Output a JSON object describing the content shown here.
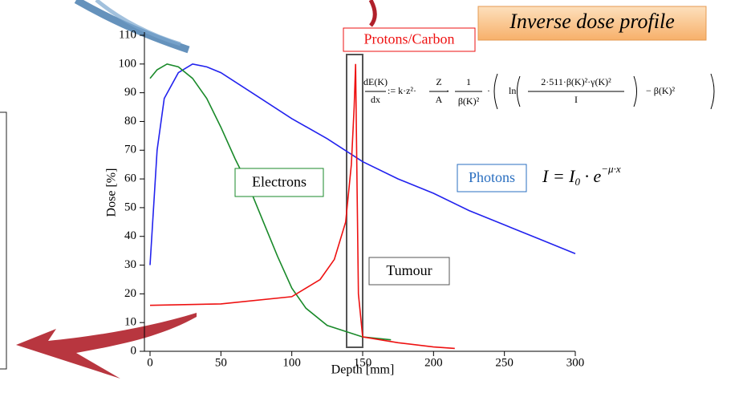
{
  "chart_data": {
    "type": "line",
    "title": "Inverse dose profile",
    "xlabel": "Depth [mm]",
    "ylabel": "Dose [%]",
    "xlim": [
      0,
      300
    ],
    "xticks": [
      0,
      50,
      100,
      150,
      200,
      250,
      300
    ],
    "ylim": [
      0,
      110
    ],
    "yticks": [
      0,
      10,
      20,
      30,
      40,
      50,
      60,
      70,
      80,
      90,
      100,
      110
    ],
    "series": [
      {
        "name": "Photons",
        "color": "#2222ee",
        "x": [
          0,
          5,
          10,
          20,
          30,
          40,
          50,
          75,
          100,
          125,
          150,
          175,
          200,
          225,
          250,
          275,
          300
        ],
        "values": [
          30,
          70,
          88,
          97,
          100,
          99,
          97,
          89,
          81,
          74,
          66,
          60,
          55,
          49,
          44,
          39,
          34
        ]
      },
      {
        "name": "Electrons",
        "color": "#1a8a2a",
        "x": [
          0,
          5,
          12,
          20,
          30,
          40,
          50,
          60,
          70,
          80,
          90,
          100,
          110,
          125,
          150,
          170
        ],
        "values": [
          95,
          98,
          100,
          99,
          95,
          88,
          78,
          67,
          57,
          45,
          33,
          22,
          15,
          9,
          5,
          4
        ]
      },
      {
        "name": "Protons/Carbon",
        "color": "#ee1111",
        "x": [
          0,
          50,
          100,
          120,
          130,
          138,
          142,
          144,
          145,
          146,
          147,
          150,
          175,
          200,
          215
        ],
        "values": [
          16,
          16.5,
          19,
          25,
          32,
          45,
          65,
          85,
          100,
          60,
          20,
          5,
          3,
          1.5,
          1
        ]
      }
    ],
    "annotations": {
      "tumour": "Tumour",
      "bethe": [
        "dE(K)",
        "dx",
        ":= k·z²·",
        "Z",
        "A",
        "·",
        "1",
        "β(K)²",
        "·",
        "ln",
        "2·511·β(K)²·γ(K)²",
        "I",
        "− β(K)²"
      ],
      "photon_law": [
        "I = I",
        "0",
        " · e",
        "−μ·x"
      ]
    }
  }
}
